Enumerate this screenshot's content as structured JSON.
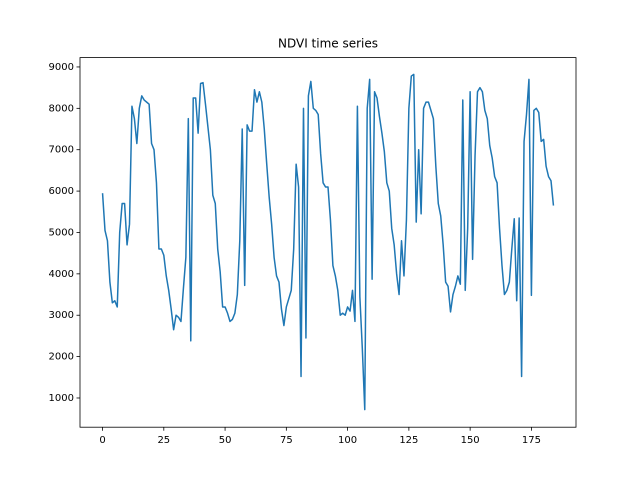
{
  "chart_data": {
    "type": "line",
    "title": "NDVI time series",
    "x": [
      0,
      1,
      2,
      3,
      4,
      5,
      6,
      7,
      8,
      9,
      10,
      11,
      12,
      13,
      14,
      15,
      16,
      17,
      18,
      19,
      20,
      21,
      22,
      23,
      24,
      25,
      26,
      27,
      28,
      29,
      30,
      31,
      32,
      33,
      34,
      35,
      36,
      37,
      38,
      39,
      40,
      41,
      42,
      43,
      44,
      45,
      46,
      47,
      48,
      49,
      50,
      51,
      52,
      53,
      54,
      55,
      56,
      57,
      58,
      59,
      60,
      61,
      62,
      63,
      64,
      65,
      66,
      67,
      68,
      69,
      70,
      71,
      72,
      73,
      74,
      75,
      76,
      77,
      78,
      79,
      80,
      81,
      82,
      83,
      84,
      85,
      86,
      87,
      88,
      89,
      90,
      91,
      92,
      93,
      94,
      95,
      96,
      97,
      98,
      99,
      100,
      101,
      102,
      103,
      104,
      105,
      106,
      107,
      108,
      109,
      110,
      111,
      112,
      113,
      114,
      115,
      116,
      117,
      118,
      119,
      120,
      121,
      122,
      123,
      124,
      125,
      126,
      127,
      128,
      129,
      130,
      131,
      132,
      133,
      134,
      135,
      136,
      137,
      138,
      139,
      140,
      141,
      142,
      143,
      144,
      145,
      146,
      147,
      148,
      149,
      150,
      151,
      152,
      153,
      154,
      155,
      156,
      157,
      158,
      159,
      160,
      161,
      162,
      163,
      164,
      165,
      166,
      167,
      168,
      169,
      170,
      171,
      172,
      173,
      174,
      175,
      176,
      177,
      178,
      179,
      180,
      181,
      182,
      183,
      184
    ],
    "series": [
      {
        "color": "#1f77b4",
        "values": [
          5950,
          5050,
          4800,
          3800,
          3300,
          3350,
          3200,
          5000,
          5700,
          5700,
          4700,
          5200,
          8050,
          7750,
          7150,
          8000,
          8300,
          8200,
          8150,
          8100,
          7150,
          7000,
          6200,
          4600,
          4600,
          4450,
          3950,
          3600,
          3150,
          2650,
          3000,
          2950,
          2850,
          3650,
          4400,
          7750,
          2380,
          8250,
          8250,
          7400,
          8600,
          8620,
          8100,
          7550,
          7000,
          5900,
          5700,
          4600,
          4050,
          3200,
          3200,
          3050,
          2850,
          2900,
          3050,
          3500,
          4800,
          7500,
          3720,
          7600,
          7450,
          7450,
          8450,
          8150,
          8400,
          8150,
          7500,
          6650,
          5850,
          5200,
          4400,
          3950,
          3800,
          3150,
          2750,
          3200,
          3400,
          3600,
          4600,
          6650,
          6100,
          1520,
          8000,
          2450,
          8300,
          8650,
          8000,
          7950,
          7850,
          6900,
          6200,
          6100,
          6100,
          5300,
          4200,
          3950,
          3600,
          3000,
          3050,
          3000,
          3200,
          3100,
          3600,
          2850,
          8050,
          3450,
          2200,
          720,
          8000,
          8700,
          3870,
          8400,
          8250,
          7800,
          7400,
          6950,
          6200,
          6000,
          5100,
          4700,
          4000,
          3500,
          4800,
          3950,
          5300,
          8000,
          8780,
          8820,
          5250,
          7000,
          5450,
          8000,
          8150,
          8150,
          7950,
          7750,
          6600,
          5700,
          5400,
          4700,
          3800,
          3700,
          3080,
          3500,
          3700,
          3950,
          3750,
          8200,
          3600,
          5100,
          8400,
          4350,
          6850,
          8400,
          8500,
          8400,
          7950,
          7750,
          7100,
          6800,
          6350,
          6200,
          5100,
          4200,
          3500,
          3600,
          3800,
          4600,
          5330,
          3350,
          5350,
          1520,
          7200,
          7850,
          8700,
          3480,
          7950,
          8000,
          7900,
          7200,
          7250,
          6600,
          6350,
          6250,
          5650
        ]
      }
    ],
    "xlim": [
      -9.2,
      193.2
    ],
    "ylim": [
      294,
      9226
    ],
    "xticks": [
      0,
      25,
      50,
      75,
      100,
      125,
      150,
      175
    ],
    "yticks": [
      1000,
      2000,
      3000,
      4000,
      5000,
      6000,
      7000,
      8000,
      9000
    ],
    "grid": false
  }
}
